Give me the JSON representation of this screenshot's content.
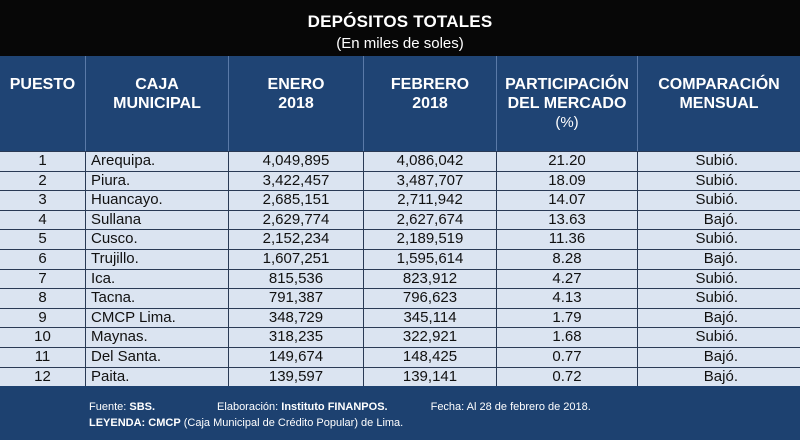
{
  "title": "DEPÓSITOS TOTALES",
  "subtitle": "(En miles de soles)",
  "headers": {
    "puesto": "PUESTO",
    "caja_l1": "CAJA",
    "caja_l2": "MUNICIPAL",
    "enero_l1": "ENERO",
    "enero_l2": "2018",
    "febrero_l1": "FEBRERO",
    "febrero_l2": "2018",
    "part_l1": "PARTICIPACIÓN",
    "part_l2": "DEL MERCADO",
    "part_l3": "(%)",
    "comp_l1": "COMPARACIÓN",
    "comp_l2": "MENSUAL"
  },
  "rows": [
    {
      "rank": "1",
      "name": "Arequipa.",
      "enero": "4,049,895",
      "febrero": "4,086,042",
      "part": "21.20",
      "cmp": "Subió."
    },
    {
      "rank": "2",
      "name": "Piura.",
      "enero": "3,422,457",
      "febrero": "3,487,707",
      "part": "18.09",
      "cmp": "Subió."
    },
    {
      "rank": "3",
      "name": "Huancayo.",
      "enero": "2,685,151",
      "febrero": "2,711,942",
      "part": "14.07",
      "cmp": "Subió."
    },
    {
      "rank": "4",
      "name": "Sullana",
      "enero": "2,629,774",
      "febrero": "2,627,674",
      "part": "13.63",
      "cmp": "Bajó."
    },
    {
      "rank": "5",
      "name": "Cusco.",
      "enero": "2,152,234",
      "febrero": "2,189,519",
      "part": "11.36",
      "cmp": "Subió."
    },
    {
      "rank": "6",
      "name": "Trujillo.",
      "enero": "1,607,251",
      "febrero": "1,595,614",
      "part": "8.28",
      "cmp": "Bajó."
    },
    {
      "rank": "7",
      "name": "Ica.",
      "enero": "815,536",
      "febrero": "823,912",
      "part": "4.27",
      "cmp": "Subió."
    },
    {
      "rank": "8",
      "name": "Tacna.",
      "enero": "791,387",
      "febrero": "796,623",
      "part": "4.13",
      "cmp": "Subió."
    },
    {
      "rank": "9",
      "name": "CMCP Lima.",
      "enero": "348,729",
      "febrero": "345,114",
      "part": "1.79",
      "cmp": "Bajó."
    },
    {
      "rank": "10",
      "name": "Maynas.",
      "enero": "318,235",
      "febrero": "322,921",
      "part": "1.68",
      "cmp": "Subió."
    },
    {
      "rank": "11",
      "name": "Del Santa.",
      "enero": "149,674",
      "febrero": "148,425",
      "part": "0.77",
      "cmp": "Bajó."
    },
    {
      "rank": "12",
      "name": "Paita.",
      "enero": "139,597",
      "febrero": "139,141",
      "part": "0.72",
      "cmp": "Bajó."
    }
  ],
  "footer": {
    "fuente_label": "Fuente: ",
    "fuente_value": "SBS.",
    "elab_label": "Elaboración: ",
    "elab_value": "Instituto FINANPOS.",
    "fecha": "Fecha: Al 28 de febrero de 2018.",
    "leyenda_label": "LEYENDA: ",
    "leyenda_abbr": "CMCP",
    "leyenda_text": " (Caja Municipal de Crédito Popular) de Lima."
  }
}
